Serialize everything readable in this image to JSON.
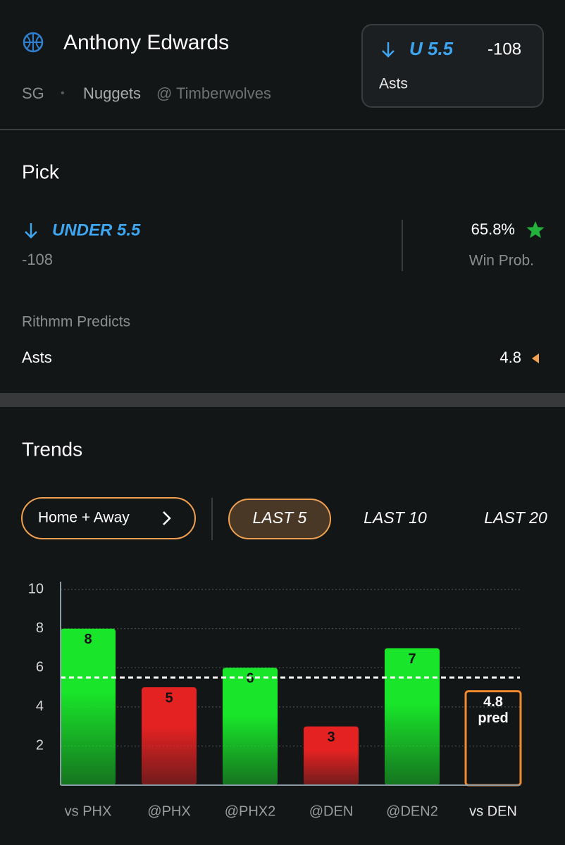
{
  "header": {
    "player": "Anthony Edwards",
    "position": "SG",
    "separator": "•",
    "team": "Nuggets",
    "opponent": "@ Timberwolves",
    "badge": {
      "pick": "U 5.5",
      "odds": "-108",
      "stat": "Asts"
    }
  },
  "pick": {
    "title": "Pick",
    "selection": "UNDER 5.5",
    "odds": "-108",
    "win_prob": "65.8%",
    "win_prob_label": "Win Prob.",
    "predicts_label": "Rithmm Predicts",
    "stat": "Asts",
    "prediction": "4.8"
  },
  "trends": {
    "title": "Trends",
    "filter": "Home + Away",
    "tabs": [
      "LAST 5",
      "LAST 10",
      "LAST 20"
    ]
  },
  "chart_data": {
    "type": "bar",
    "categories": [
      "vs PHX",
      "@PHX",
      "@PHX2",
      "@DEN",
      "@DEN2",
      "vs DEN"
    ],
    "values": [
      8,
      5,
      6,
      3,
      7,
      4.8
    ],
    "colors": [
      "#19e62a",
      "#e52222",
      "#19e62a",
      "#e52222",
      "#19e62a",
      "#f08a2c"
    ],
    "styles": [
      "fill",
      "fill",
      "fill",
      "fill",
      "fill",
      "outline"
    ],
    "prediction_label": "pred",
    "threshold": 5.5,
    "ylim": [
      0,
      10.4
    ],
    "yticks": [
      2,
      4,
      6,
      8,
      10
    ],
    "grid": true
  }
}
